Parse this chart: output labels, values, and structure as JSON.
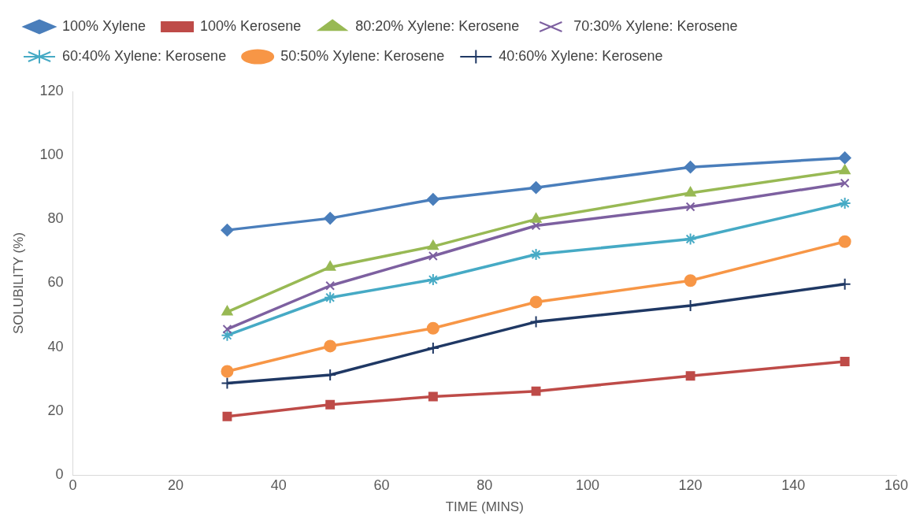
{
  "chart_data": {
    "type": "line",
    "xlabel": "TIME (MINS)",
    "ylabel": "SOLUBILITY (%)",
    "x": [
      30,
      50,
      70,
      90,
      120,
      150
    ],
    "xlim": [
      0,
      160
    ],
    "xticks": [
      0,
      20,
      40,
      60,
      80,
      100,
      120,
      140,
      160
    ],
    "ylim": [
      0,
      120
    ],
    "yticks": [
      0,
      20,
      40,
      60,
      80,
      100,
      120
    ],
    "grid": false,
    "legend": "top",
    "line_style": "solid",
    "series": [
      {
        "name": "100% Xylene",
        "color": "#4a7ebb",
        "marker": "diamond",
        "values": [
          76.6,
          80.3,
          86.2,
          89.9,
          96.3,
          99.2
        ]
      },
      {
        "name": "100% Kerosene",
        "color": "#be4b48",
        "marker": "square",
        "values": [
          18.3,
          22,
          24.5,
          26.2,
          31,
          35.5
        ]
      },
      {
        "name": "80:20% Xylene: Kerosene",
        "color": "#98b954",
        "marker": "triangle",
        "values": [
          51,
          65,
          71.5,
          80,
          88.2,
          95.2
        ]
      },
      {
        "name": "70:30% Xylene: Kerosene",
        "color": "#7d60a0",
        "marker": "x",
        "values": [
          45.6,
          59.2,
          68.5,
          78,
          83.9,
          91.3
        ]
      },
      {
        "name": "60:40% Xylene: Kerosene",
        "color": "#46aac5",
        "marker": "cross",
        "values": [
          43.7,
          55.5,
          61.1,
          69,
          73.8,
          85
        ]
      },
      {
        "name": "50:50% Xylene: Kerosene",
        "color": "#f79646",
        "marker": "circle",
        "values": [
          32.4,
          40.3,
          45.9,
          54.1,
          60.8,
          73
        ]
      },
      {
        "name": "40:60% Xylene: Kerosene",
        "color": "#1f3864",
        "marker": "plus",
        "values": [
          28.7,
          31.3,
          39.7,
          47.9,
          53,
          59.7
        ]
      }
    ]
  }
}
